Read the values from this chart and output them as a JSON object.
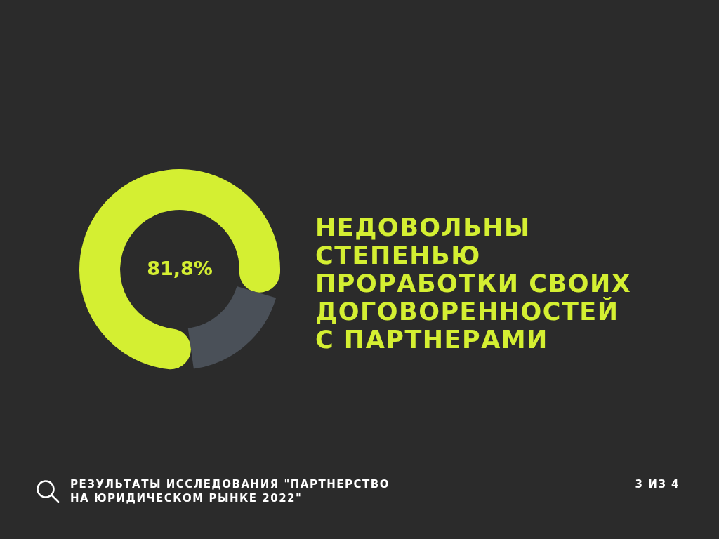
{
  "chart_data": {
    "type": "donut",
    "title": "НЕДОВОЛЬНЫ\nСТЕПЕНЬЮ\nПРОРАБОТКИ СВОИХ\nДОГОВОРЕННОСТЕЙ\nС ПАРТНЕРАМИ",
    "categories": [
      null,
      null
    ],
    "values": [
      81.8,
      18.2
    ],
    "colors": [
      "#d4ef32",
      "#4a5058"
    ],
    "value_labels": [
      "81,8%",
      null
    ],
    "annotations": [
      "РЕЗУЛЬТАТЫ ИССЛЕДОВАНИЯ \"ПАРТНЕРСТВО\nНА ЮРИДИЧЕСКОМ РЫНКЕ 2022\"",
      "3 ИЗ 4"
    ]
  }
}
